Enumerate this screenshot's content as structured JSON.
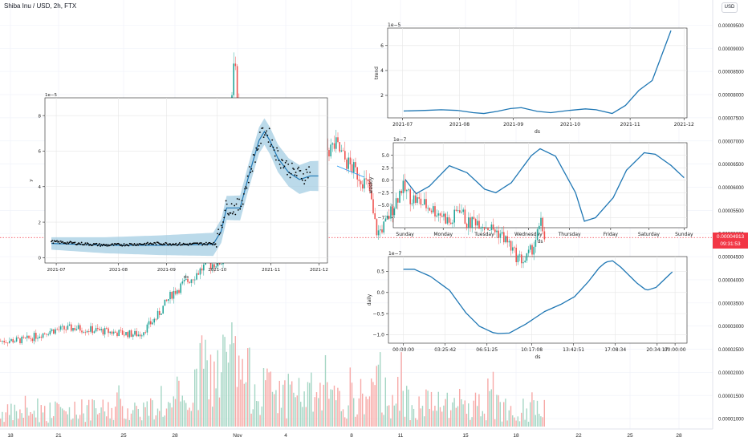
{
  "header": {
    "title": "Shiba Inu / USD, 2h, FTX",
    "currency_button": "USD"
  },
  "price": {
    "current": "0.00004913",
    "countdown": "09:31:53"
  },
  "chart_data": [
    {
      "type": "candlestick",
      "title": "Shiba Inu / USD, 2h, FTX",
      "xlabel": "",
      "ylabel": "",
      "x_tick_labels": [
        "18",
        "21",
        "25",
        "28",
        "Nov",
        "4",
        "8",
        "11",
        "15",
        "18",
        "22",
        "25",
        "28"
      ],
      "y_tick_labels": [
        "0.00009500",
        "0.00009000",
        "0.00008500",
        "0.00008000",
        "0.00007500",
        "0.00007000",
        "0.00006500",
        "0.00006000",
        "0.00005500",
        "0.00005000",
        "0.00004500",
        "0.00004000",
        "0.00003500",
        "0.00003000",
        "0.00002500",
        "0.00002000",
        "0.00001500",
        "0.00001000"
      ],
      "ylim": [
        9.5e-06,
        9.75e-05
      ],
      "last_price": 4.913e-05,
      "close_path": [
        [
          0,
          2.68e-05
        ],
        [
          3,
          2.7e-05
        ],
        [
          6,
          2.9e-05
        ],
        [
          9,
          2.96e-05
        ],
        [
          12,
          2.9e-05
        ],
        [
          15,
          2.84e-05
        ],
        [
          17,
          2.82e-05
        ],
        [
          19,
          3.18e-05
        ],
        [
          21,
          3.72e-05
        ],
        [
          23,
          4e-05
        ],
        [
          25,
          4.3e-05
        ],
        [
          27,
          4.4e-05
        ],
        [
          28.2,
          7.7e-05
        ],
        [
          28.6,
          9e-05
        ],
        [
          29,
          7.6e-05
        ],
        [
          30,
          7.2e-05
        ],
        [
          31,
          7e-05
        ],
        [
          32,
          7.7e-05
        ],
        [
          33,
          7.3e-05
        ],
        [
          34,
          6.7e-05
        ],
        [
          35,
          6.8e-05
        ],
        [
          36,
          7e-05
        ],
        [
          37,
          6.9e-05
        ],
        [
          38,
          6.8e-05
        ],
        [
          39,
          7e-05
        ],
        [
          40,
          6.8e-05
        ],
        [
          41,
          6.9e-05
        ],
        [
          42,
          6.6e-05
        ],
        [
          43,
          6.4e-05
        ],
        [
          44,
          6.2e-05
        ],
        [
          45,
          6e-05
        ],
        [
          45.5,
          5.4e-05
        ],
        [
          46,
          5e-05
        ],
        [
          47,
          5.2e-05
        ],
        [
          48,
          5.6e-05
        ],
        [
          49,
          6e-05
        ],
        [
          50,
          5.8e-05
        ],
        [
          51,
          5.7e-05
        ],
        [
          52,
          5.6e-05
        ],
        [
          53,
          5.5e-05
        ],
        [
          54,
          5.4e-05
        ],
        [
          55,
          5.2e-05
        ],
        [
          56,
          5.6e-05
        ],
        [
          57,
          5.2e-05
        ],
        [
          58,
          5.3e-05
        ],
        [
          59,
          5.2e-05
        ],
        [
          60,
          5.1e-05
        ],
        [
          61,
          5e-05
        ],
        [
          62,
          4.8e-05
        ],
        [
          63,
          4.5e-05
        ],
        [
          64,
          4.4e-05
        ],
        [
          65,
          4.7e-05
        ],
        [
          66,
          5.2e-05
        ],
        [
          66.5,
          4.91e-05
        ]
      ],
      "volume_path": [
        [
          0,
          0.2
        ],
        [
          22,
          0.3
        ],
        [
          25,
          0.7
        ],
        [
          28,
          1.0
        ],
        [
          30,
          0.75
        ],
        [
          34,
          0.45
        ],
        [
          38,
          0.5
        ],
        [
          42,
          0.35
        ],
        [
          46,
          0.55
        ],
        [
          50,
          0.4
        ],
        [
          54,
          0.3
        ],
        [
          58,
          0.35
        ],
        [
          62,
          0.3
        ],
        [
          66,
          0.25
        ]
      ]
    },
    {
      "type": "line",
      "title": "",
      "xlabel": "ds",
      "ylabel": "y",
      "offset_label": "1e−5",
      "x_tick_labels": [
        "2021-07",
        "2021-08",
        "2021-09",
        "2021-10",
        "2021-11",
        "2021-12"
      ],
      "y_ticks": [
        0,
        2,
        4,
        6,
        8
      ],
      "ylim": [
        -0.3,
        9
      ],
      "series": [
        {
          "points": [
            [
              0,
              0.9
            ],
            [
              10,
              0.8
            ],
            [
              20,
              0.7
            ],
            [
              30,
              0.75
            ],
            [
              40,
              0.8
            ],
            [
              50,
              0.75
            ],
            [
              55,
              0.78
            ],
            [
              60,
              0.8
            ],
            [
              62,
              1.2
            ],
            [
              64,
              2.5
            ],
            [
              65,
              2.9
            ],
            [
              67,
              2.8
            ],
            [
              70,
              2.9
            ],
            [
              73,
              4.5
            ],
            [
              75,
              5.5
            ],
            [
              77,
              6.5
            ],
            [
              79,
              7.2
            ],
            [
              81,
              6.8
            ],
            [
              83,
              6.0
            ],
            [
              85,
              5.5
            ],
            [
              88,
              5.0
            ],
            [
              90,
              4.8
            ],
            [
              94,
              4.6
            ],
            [
              96,
              5.0
            ],
            [
              98,
              5.8
            ],
            [
              99,
              6.4
            ]
          ]
        },
        {
          "points": [
            [
              0,
              0.8
            ],
            [
              20,
              0.7
            ],
            [
              40,
              0.7
            ],
            [
              60,
              0.75
            ],
            [
              63,
              1.5
            ],
            [
              65,
              2.8
            ],
            [
              70,
              2.8
            ],
            [
              73,
              4.5
            ],
            [
              77,
              6.6
            ],
            [
              79,
              7.1
            ],
            [
              81,
              6.6
            ],
            [
              84,
              5.6
            ],
            [
              88,
              4.8
            ],
            [
              92,
              4.4
            ],
            [
              96,
              4.6
            ]
          ]
        }
      ]
    },
    {
      "type": "line",
      "title": "",
      "xlabel": "ds",
      "ylabel": "trend",
      "offset_label": "1e−5",
      "x_tick_labels": [
        "2021-07",
        "2021-08",
        "2021-09",
        "2021-10",
        "2021-11",
        "2021-12"
      ],
      "y_ticks": [
        2,
        4,
        6
      ],
      "ylim": [
        0.2,
        7.4
      ],
      "series": [
        {
          "points": [
            [
              0,
              0.75
            ],
            [
              0.08,
              0.8
            ],
            [
              0.14,
              0.85
            ],
            [
              0.2,
              0.8
            ],
            [
              0.26,
              0.62
            ],
            [
              0.3,
              0.55
            ],
            [
              0.35,
              0.72
            ],
            [
              0.4,
              0.95
            ],
            [
              0.44,
              1.02
            ],
            [
              0.5,
              0.72
            ],
            [
              0.55,
              0.62
            ],
            [
              0.62,
              0.8
            ],
            [
              0.68,
              0.92
            ],
            [
              0.72,
              0.85
            ],
            [
              0.78,
              0.55
            ],
            [
              0.83,
              1.2
            ],
            [
              0.88,
              2.4
            ],
            [
              0.93,
              3.2
            ],
            [
              1,
              7.2
            ]
          ]
        }
      ]
    },
    {
      "type": "line",
      "title": "",
      "xlabel": "ds",
      "ylabel": "weekly",
      "offset_label": "1e−7",
      "x_tick_labels": [
        "Sunday",
        "Monday",
        "Tuesday",
        "Wednesday",
        "Thursday",
        "Friday",
        "Saturday",
        "Sunday"
      ],
      "y_ticks": [
        5.0,
        2.5,
        0.0,
        -2.5,
        -5.0,
        -7.5
      ],
      "y_tick_labels": [
        "5.0",
        "2.5",
        "0.0",
        "−2.5",
        "−5.0",
        "−7.5"
      ],
      "ylim": [
        -9.5,
        7.5
      ],
      "series": [
        {
          "points": [
            [
              0,
              0.2
            ],
            [
              0.25,
              -2.7
            ],
            [
              0.55,
              -1.2
            ],
            [
              1,
              2.9
            ],
            [
              1.4,
              1.5
            ],
            [
              1.8,
              -1.8
            ],
            [
              2.05,
              -2.5
            ],
            [
              2.4,
              -0.5
            ],
            [
              2.85,
              4.9
            ],
            [
              3.05,
              6.3
            ],
            [
              3.4,
              4.8
            ],
            [
              3.85,
              -2.5
            ],
            [
              4.05,
              -8.2
            ],
            [
              4.3,
              -7.5
            ],
            [
              4.7,
              -3.5
            ],
            [
              5.0,
              2.0
            ],
            [
              5.4,
              5.5
            ],
            [
              5.65,
              5.2
            ],
            [
              6.0,
              3.0
            ],
            [
              6.3,
              0.5
            ]
          ]
        }
      ]
    },
    {
      "type": "line",
      "title": "",
      "xlabel": "ds",
      "ylabel": "daily",
      "offset_label": "1e−7",
      "x_tick_labels": [
        "00:00:00",
        "03:25:42",
        "06:51:25",
        "10:17:08",
        "13:42:51",
        "17:08:34",
        "20:34:17",
        "00:00:00"
      ],
      "y_ticks": [
        0.5,
        0.0,
        -0.5,
        -1.0
      ],
      "y_tick_labels": [
        "0.5",
        "0.0",
        "−0.5",
        "−1.0"
      ],
      "ylim": [
        -1.2,
        0.85
      ],
      "series": [
        {
          "points": [
            [
              0,
              0.55
            ],
            [
              0.04,
              0.55
            ],
            [
              0.1,
              0.38
            ],
            [
              0.17,
              0.05
            ],
            [
              0.23,
              -0.48
            ],
            [
              0.28,
              -0.8
            ],
            [
              0.33,
              -0.95
            ],
            [
              0.35,
              -0.97
            ],
            [
              0.39,
              -0.96
            ],
            [
              0.45,
              -0.75
            ],
            [
              0.52,
              -0.45
            ],
            [
              0.58,
              -0.28
            ],
            [
              0.63,
              -0.1
            ],
            [
              0.68,
              0.25
            ],
            [
              0.72,
              0.58
            ],
            [
              0.745,
              0.72
            ],
            [
              0.77,
              0.75
            ],
            [
              0.8,
              0.6
            ],
            [
              0.86,
              0.22
            ],
            [
              0.895,
              0.05
            ],
            [
              0.93,
              0.12
            ],
            [
              1,
              0.55
            ]
          ]
        }
      ]
    }
  ]
}
